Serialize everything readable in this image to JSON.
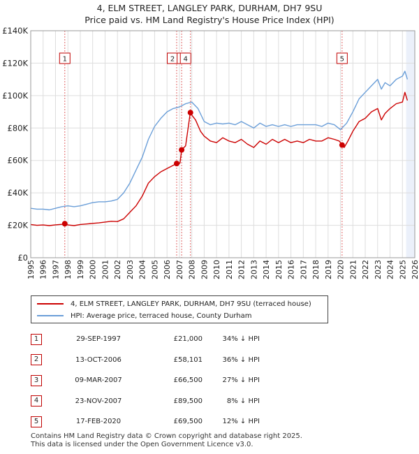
{
  "title_line1": "4, ELM STREET, LANGLEY PARK, DURHAM, DH7 9SU",
  "title_line2": "Price paid vs. HM Land Registry's House Price Index (HPI)",
  "chart_data": {
    "type": "line",
    "title": "4, ELM STREET, LANGLEY PARK, DURHAM, DH7 9SU",
    "subtitle": "Price paid vs. HM Land Registry's House Price Index (HPI)",
    "xlabel": "",
    "ylabel": "",
    "xlim": [
      1995,
      2026
    ],
    "ylim": [
      0,
      140000
    ],
    "x_ticks": [
      1995,
      1996,
      1997,
      1998,
      1999,
      2000,
      2001,
      2002,
      2003,
      2004,
      2005,
      2006,
      2007,
      2008,
      2009,
      2010,
      2011,
      2012,
      2013,
      2014,
      2015,
      2016,
      2017,
      2018,
      2019,
      2020,
      2021,
      2022,
      2023,
      2024,
      2025,
      2026
    ],
    "x_tick_labels": [
      "1995",
      "1996",
      "1997",
      "1998",
      "1999",
      "2000",
      "2001",
      "2002",
      "2003",
      "2004",
      "2005",
      "2006",
      "2007",
      "2008",
      "2009",
      "2010",
      "2011",
      "2012",
      "2013",
      "2014",
      "2015",
      "2016",
      "2017",
      "2018",
      "2019",
      "2020",
      "2021",
      "2022",
      "2023",
      "2024",
      "2025",
      "2026"
    ],
    "y_ticks": [
      0,
      20000,
      40000,
      60000,
      80000,
      100000,
      120000,
      140000
    ],
    "y_tick_labels": [
      "£0",
      "£20K",
      "£40K",
      "£60K",
      "£80K",
      "£100K",
      "£120K",
      "£140K"
    ],
    "grid": true,
    "forecast_start": 2025.3,
    "colors": {
      "property": "#cc0000",
      "hpi": "#6a9ed8",
      "marker_line": "#e06666",
      "shade": "#dde6f6"
    },
    "series": [
      {
        "name": "4, ELM STREET, LANGLEY PARK, DURHAM, DH7 9SU (terraced house)",
        "color": "#cc0000",
        "x": [
          1995.0,
          1995.5,
          1996.0,
          1996.5,
          1997.0,
          1997.5,
          1997.75,
          1998.0,
          1998.5,
          1999.0,
          1999.5,
          2000.0,
          2000.5,
          2001.0,
          2001.5,
          2002.0,
          2002.5,
          2003.0,
          2003.5,
          2004.0,
          2004.5,
          2005.0,
          2005.5,
          2006.0,
          2006.5,
          2006.78,
          2006.9,
          2007.05,
          2007.18,
          2007.5,
          2007.85,
          2007.89,
          2008.0,
          2008.3,
          2008.7,
          2009.0,
          2009.5,
          2010.0,
          2010.5,
          2011.0,
          2011.5,
          2012.0,
          2012.5,
          2013.0,
          2013.5,
          2014.0,
          2014.5,
          2015.0,
          2015.5,
          2016.0,
          2016.5,
          2017.0,
          2017.5,
          2018.0,
          2018.5,
          2019.0,
          2019.5,
          2019.9,
          2020.13,
          2020.3,
          2020.6,
          2021.0,
          2021.5,
          2022.0,
          2022.5,
          2023.0,
          2023.3,
          2023.6,
          2024.0,
          2024.5,
          2025.0,
          2025.2,
          2025.4
        ],
        "values": [
          20500,
          20000,
          20200,
          19800,
          20300,
          20600,
          21000,
          20200,
          19800,
          20500,
          20800,
          21200,
          21500,
          22000,
          22500,
          22300,
          24000,
          28000,
          32000,
          38000,
          46000,
          50000,
          53000,
          55000,
          57000,
          58101,
          57500,
          58500,
          66500,
          69000,
          88000,
          89500,
          88000,
          85000,
          78000,
          75000,
          72000,
          71000,
          74000,
          72000,
          71000,
          73000,
          70000,
          68000,
          72000,
          70000,
          73000,
          71000,
          73000,
          71000,
          72000,
          71000,
          73000,
          72000,
          72000,
          74000,
          73000,
          72000,
          69500,
          68000,
          72000,
          78000,
          84000,
          86000,
          90000,
          92000,
          85000,
          89000,
          92000,
          95000,
          96000,
          102000,
          97000
        ]
      },
      {
        "name": "HPI: Average price, terraced house, County Durham",
        "color": "#6a9ed8",
        "x": [
          1995.0,
          1995.5,
          1996.0,
          1996.5,
          1997.0,
          1997.5,
          1998.0,
          1998.5,
          1999.0,
          1999.5,
          2000.0,
          2000.5,
          2001.0,
          2001.5,
          2002.0,
          2002.5,
          2003.0,
          2003.5,
          2004.0,
          2004.5,
          2005.0,
          2005.5,
          2006.0,
          2006.5,
          2007.0,
          2007.5,
          2008.0,
          2008.5,
          2009.0,
          2009.5,
          2010.0,
          2010.5,
          2011.0,
          2011.5,
          2012.0,
          2012.5,
          2013.0,
          2013.5,
          2014.0,
          2014.5,
          2015.0,
          2015.5,
          2016.0,
          2016.5,
          2017.0,
          2017.5,
          2018.0,
          2018.5,
          2019.0,
          2019.5,
          2020.0,
          2020.5,
          2021.0,
          2021.5,
          2022.0,
          2022.5,
          2023.0,
          2023.3,
          2023.6,
          2024.0,
          2024.5,
          2025.0,
          2025.2,
          2025.4
        ],
        "values": [
          30500,
          30000,
          30000,
          29500,
          30500,
          31500,
          32000,
          31500,
          32000,
          33000,
          34000,
          34500,
          34500,
          35000,
          36000,
          40000,
          46000,
          54000,
          62000,
          73000,
          81000,
          86000,
          90000,
          92000,
          93000,
          95000,
          96000,
          92000,
          84000,
          82000,
          83000,
          82500,
          83000,
          82000,
          84000,
          82000,
          80000,
          83000,
          81000,
          82000,
          81000,
          82000,
          81000,
          82000,
          82000,
          82000,
          82000,
          81000,
          83000,
          82000,
          79000,
          83000,
          90000,
          98000,
          102000,
          106000,
          110000,
          104000,
          108000,
          106000,
          110000,
          112000,
          115000,
          110000
        ]
      }
    ],
    "sales": [
      {
        "label": "1",
        "date": "29-SEP-1997",
        "x": 1997.75,
        "price": "£21,000",
        "value": 21000,
        "hpi": "34% ↓ HPI"
      },
      {
        "label": "2",
        "date": "13-OCT-2006",
        "x": 2006.78,
        "price": "£58,101",
        "value": 58101,
        "hpi": "36% ↓ HPI"
      },
      {
        "label": "3",
        "date": "09-MAR-2007",
        "x": 2007.18,
        "price": "£66,500",
        "value": 66500,
        "hpi": "27% ↓ HPI"
      },
      {
        "label": "4",
        "date": "23-NOV-2007",
        "x": 2007.89,
        "price": "£89,500",
        "value": 89500,
        "hpi": "8% ↓ HPI"
      },
      {
        "label": "5",
        "date": "17-FEB-2020",
        "x": 2020.13,
        "price": "£69,500",
        "value": 69500,
        "hpi": "12% ↓ HPI"
      }
    ]
  },
  "legend": {
    "property_label": "4, ELM STREET, LANGLEY PARK, DURHAM, DH7 9SU (terraced house)",
    "hpi_label": "HPI: Average price, terraced house, County Durham"
  },
  "footer": {
    "line1": "Contains HM Land Registry data © Crown copyright and database right 2025.",
    "line2": "This data is licensed under the Open Government Licence v3.0."
  }
}
